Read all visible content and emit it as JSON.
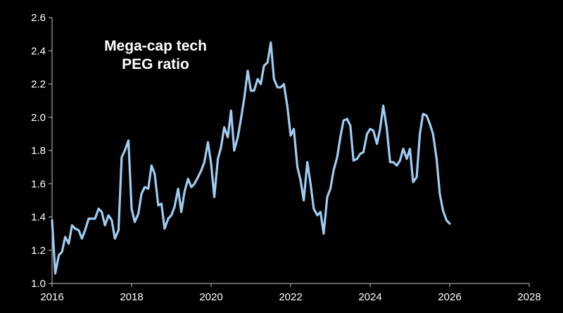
{
  "chart_data": {
    "type": "line",
    "title_lines": [
      "Mega-cap tech",
      "PEG ratio"
    ],
    "xlabel": "",
    "ylabel": "",
    "xlim": [
      2016,
      2028
    ],
    "ylim": [
      1.0,
      2.6
    ],
    "x_ticks": [
      2016,
      2018,
      2020,
      2022,
      2024,
      2026,
      2028
    ],
    "x_tick_labels": [
      "2016",
      "2018",
      "2020",
      "2022",
      "2024",
      "2026",
      "2028"
    ],
    "y_ticks": [
      1.0,
      1.2,
      1.4,
      1.6,
      1.8,
      2.0,
      2.2,
      2.4,
      2.6
    ],
    "y_tick_labels": [
      "1.0",
      "1.2",
      "1.4",
      "1.6",
      "1.8",
      "2.0",
      "2.2",
      "2.4",
      "2.6"
    ],
    "grid": false,
    "legend": "none",
    "series": [
      {
        "name": "Mega-cap tech PEG ratio",
        "color": "#9fcdf2",
        "x": [
          2016.0,
          2016.08,
          2016.17,
          2016.25,
          2016.33,
          2016.42,
          2016.5,
          2016.58,
          2016.67,
          2016.75,
          2016.83,
          2016.92,
          2017.0,
          2017.08,
          2017.17,
          2017.25,
          2017.33,
          2017.42,
          2017.5,
          2017.58,
          2017.67,
          2017.75,
          2017.83,
          2017.92,
          2018.0,
          2018.08,
          2018.17,
          2018.25,
          2018.33,
          2018.42,
          2018.5,
          2018.58,
          2018.67,
          2018.75,
          2018.83,
          2018.92,
          2019.0,
          2019.08,
          2019.17,
          2019.25,
          2019.33,
          2019.42,
          2019.5,
          2019.58,
          2019.67,
          2019.75,
          2019.83,
          2019.92,
          2020.0,
          2020.08,
          2020.17,
          2020.25,
          2020.33,
          2020.42,
          2020.5,
          2020.58,
          2020.67,
          2020.75,
          2020.83,
          2020.92,
          2021.0,
          2021.08,
          2021.17,
          2021.25,
          2021.33,
          2021.42,
          2021.5,
          2021.58,
          2021.67,
          2021.75,
          2021.83,
          2021.92,
          2022.0,
          2022.08,
          2022.17,
          2022.25,
          2022.33,
          2022.42,
          2022.5,
          2022.58,
          2022.67,
          2022.75,
          2022.83,
          2022.92,
          2023.0,
          2023.08,
          2023.17,
          2023.25,
          2023.33,
          2023.42,
          2023.5,
          2023.58,
          2023.67,
          2023.75,
          2023.83,
          2023.92,
          2024.0,
          2024.08,
          2024.17,
          2024.25,
          2024.33,
          2024.42,
          2024.5,
          2024.58,
          2024.67,
          2024.75,
          2024.83,
          2024.92,
          2025.0,
          2025.08,
          2025.17,
          2025.25,
          2025.33,
          2025.42,
          2025.5,
          2025.58,
          2025.67,
          2025.75,
          2025.83,
          2025.92,
          2026.0
        ],
        "y": [
          1.38,
          1.06,
          1.17,
          1.19,
          1.28,
          1.24,
          1.35,
          1.33,
          1.32,
          1.27,
          1.32,
          1.39,
          1.39,
          1.39,
          1.45,
          1.43,
          1.35,
          1.41,
          1.38,
          1.27,
          1.32,
          1.76,
          1.8,
          1.86,
          1.45,
          1.37,
          1.42,
          1.54,
          1.58,
          1.57,
          1.71,
          1.66,
          1.47,
          1.48,
          1.33,
          1.39,
          1.41,
          1.46,
          1.57,
          1.43,
          1.55,
          1.63,
          1.58,
          1.6,
          1.64,
          1.68,
          1.73,
          1.85,
          1.72,
          1.52,
          1.75,
          1.82,
          1.94,
          1.88,
          2.04,
          1.8,
          1.88,
          1.99,
          2.11,
          2.28,
          2.16,
          2.16,
          2.23,
          2.2,
          2.31,
          2.33,
          2.45,
          2.23,
          2.18,
          2.18,
          2.2,
          2.06,
          1.89,
          1.93,
          1.7,
          1.62,
          1.5,
          1.73,
          1.6,
          1.45,
          1.41,
          1.43,
          1.3,
          1.52,
          1.57,
          1.68,
          1.76,
          1.88,
          1.98,
          1.99,
          1.95,
          1.74,
          1.75,
          1.78,
          1.79,
          1.9,
          1.93,
          1.92,
          1.84,
          1.93,
          2.07,
          1.93,
          1.73,
          1.73,
          1.71,
          1.74,
          1.81,
          1.75,
          1.81,
          1.61,
          1.64,
          1.9,
          2.02,
          2.01,
          1.96,
          1.9,
          1.75,
          1.54,
          1.44,
          1.38,
          1.36
        ]
      }
    ]
  }
}
